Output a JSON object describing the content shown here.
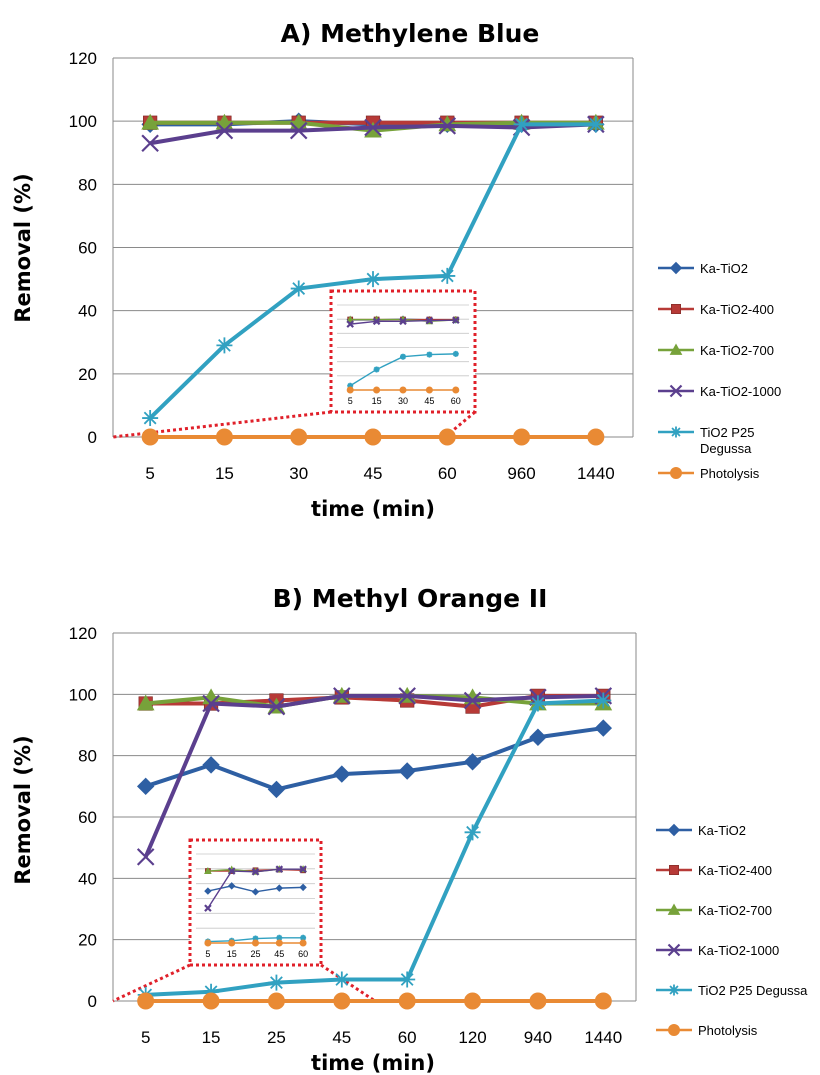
{
  "chart_data": [
    {
      "type": "line",
      "title": "A) Methylene Blue",
      "xlabel": "time (min)",
      "ylabel": "Removal (%)",
      "categories": [
        "5",
        "15",
        "30",
        "45",
        "60",
        "960",
        "1440"
      ],
      "ylim": [
        0,
        120
      ],
      "yticks": [
        0,
        20,
        40,
        60,
        80,
        100,
        120
      ],
      "grid": true,
      "legend_position": "right",
      "series": [
        {
          "name": "Ka-TiO2",
          "color": "#2e5fa3",
          "marker": "diamond",
          "values": [
            99,
            99,
            100,
            99,
            99,
            99,
            99
          ]
        },
        {
          "name": "Ka-TiO2-400",
          "color": "#b73a37",
          "marker": "square",
          "values": [
            99.5,
            99.5,
            99.5,
            99.5,
            99.5,
            99.5,
            99.5
          ]
        },
        {
          "name": "Ka-TiO2-700",
          "color": "#77a23a",
          "marker": "triangle",
          "values": [
            99.5,
            99.5,
            99.5,
            97,
            99,
            99.5,
            99.5
          ]
        },
        {
          "name": "Ka-TiO2-1000",
          "color": "#5b3f8e",
          "marker": "x",
          "values": [
            93,
            97,
            97,
            98,
            98.5,
            98,
            99
          ]
        },
        {
          "name": "TiO2 P25 Degussa",
          "color": "#31a1c1",
          "marker": "star",
          "values": [
            6,
            29,
            47,
            50,
            51,
            99,
            99
          ]
        },
        {
          "name": "Photolysis",
          "color": "#e98a34",
          "marker": "circle",
          "values": [
            0,
            0,
            0,
            0,
            0,
            0,
            0
          ]
        }
      ],
      "inset": {
        "categories": [
          "5",
          "15",
          "30",
          "45",
          "60"
        ]
      }
    },
    {
      "type": "line",
      "title": "B) Methyl Orange II",
      "xlabel": "time (min)",
      "ylabel": "Removal (%)",
      "categories": [
        "5",
        "15",
        "25",
        "45",
        "60",
        "120",
        "940",
        "1440"
      ],
      "ylim": [
        0,
        120
      ],
      "yticks": [
        0,
        20,
        40,
        60,
        80,
        100,
        120
      ],
      "grid": true,
      "legend_position": "right",
      "series": [
        {
          "name": "Ka-TiO2",
          "color": "#2e5fa3",
          "marker": "diamond",
          "values": [
            70,
            77,
            69,
            74,
            75,
            78,
            86,
            89
          ]
        },
        {
          "name": "Ka-TiO2-400",
          "color": "#b73a37",
          "marker": "square",
          "values": [
            97,
            97,
            98,
            99,
            98,
            96,
            99.5,
            99.5
          ]
        },
        {
          "name": "Ka-TiO2-700",
          "color": "#77a23a",
          "marker": "triangle",
          "values": [
            97,
            99,
            96,
            99.5,
            99.5,
            99,
            97,
            97
          ]
        },
        {
          "name": "Ka-TiO2-1000",
          "color": "#5b3f8e",
          "marker": "x",
          "values": [
            47,
            97,
            96,
            99.5,
            99.5,
            98,
            99,
            99.5
          ]
        },
        {
          "name": "TiO2 P25 Degussa",
          "color": "#31a1c1",
          "marker": "star",
          "values": [
            2,
            3,
            6,
            7,
            7,
            55,
            97,
            98
          ]
        },
        {
          "name": "Photolysis",
          "color": "#e98a34",
          "marker": "circle",
          "values": [
            0,
            0,
            0,
            0,
            0,
            0,
            0,
            0
          ]
        }
      ],
      "inset": {
        "categories": [
          "5",
          "15",
          "25",
          "45",
          "60"
        ]
      }
    }
  ]
}
